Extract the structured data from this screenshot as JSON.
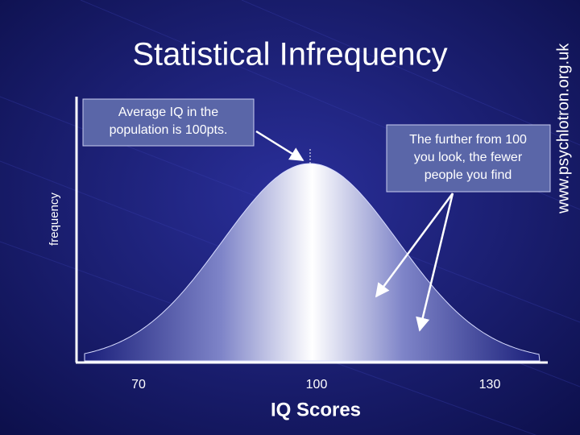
{
  "title": "Statistical Infrequency",
  "watermark": "www.psychlotron.org.uk",
  "callouts": [
    {
      "lines": [
        "Average IQ in the",
        "population is 100pts."
      ]
    },
    {
      "lines": [
        "The further from 100",
        "you look, the fewer",
        "people you find"
      ]
    }
  ],
  "axis": {
    "x_label": "IQ Scores",
    "y_label": "frequency",
    "ticks": [
      "70",
      "100",
      "130"
    ]
  }
}
